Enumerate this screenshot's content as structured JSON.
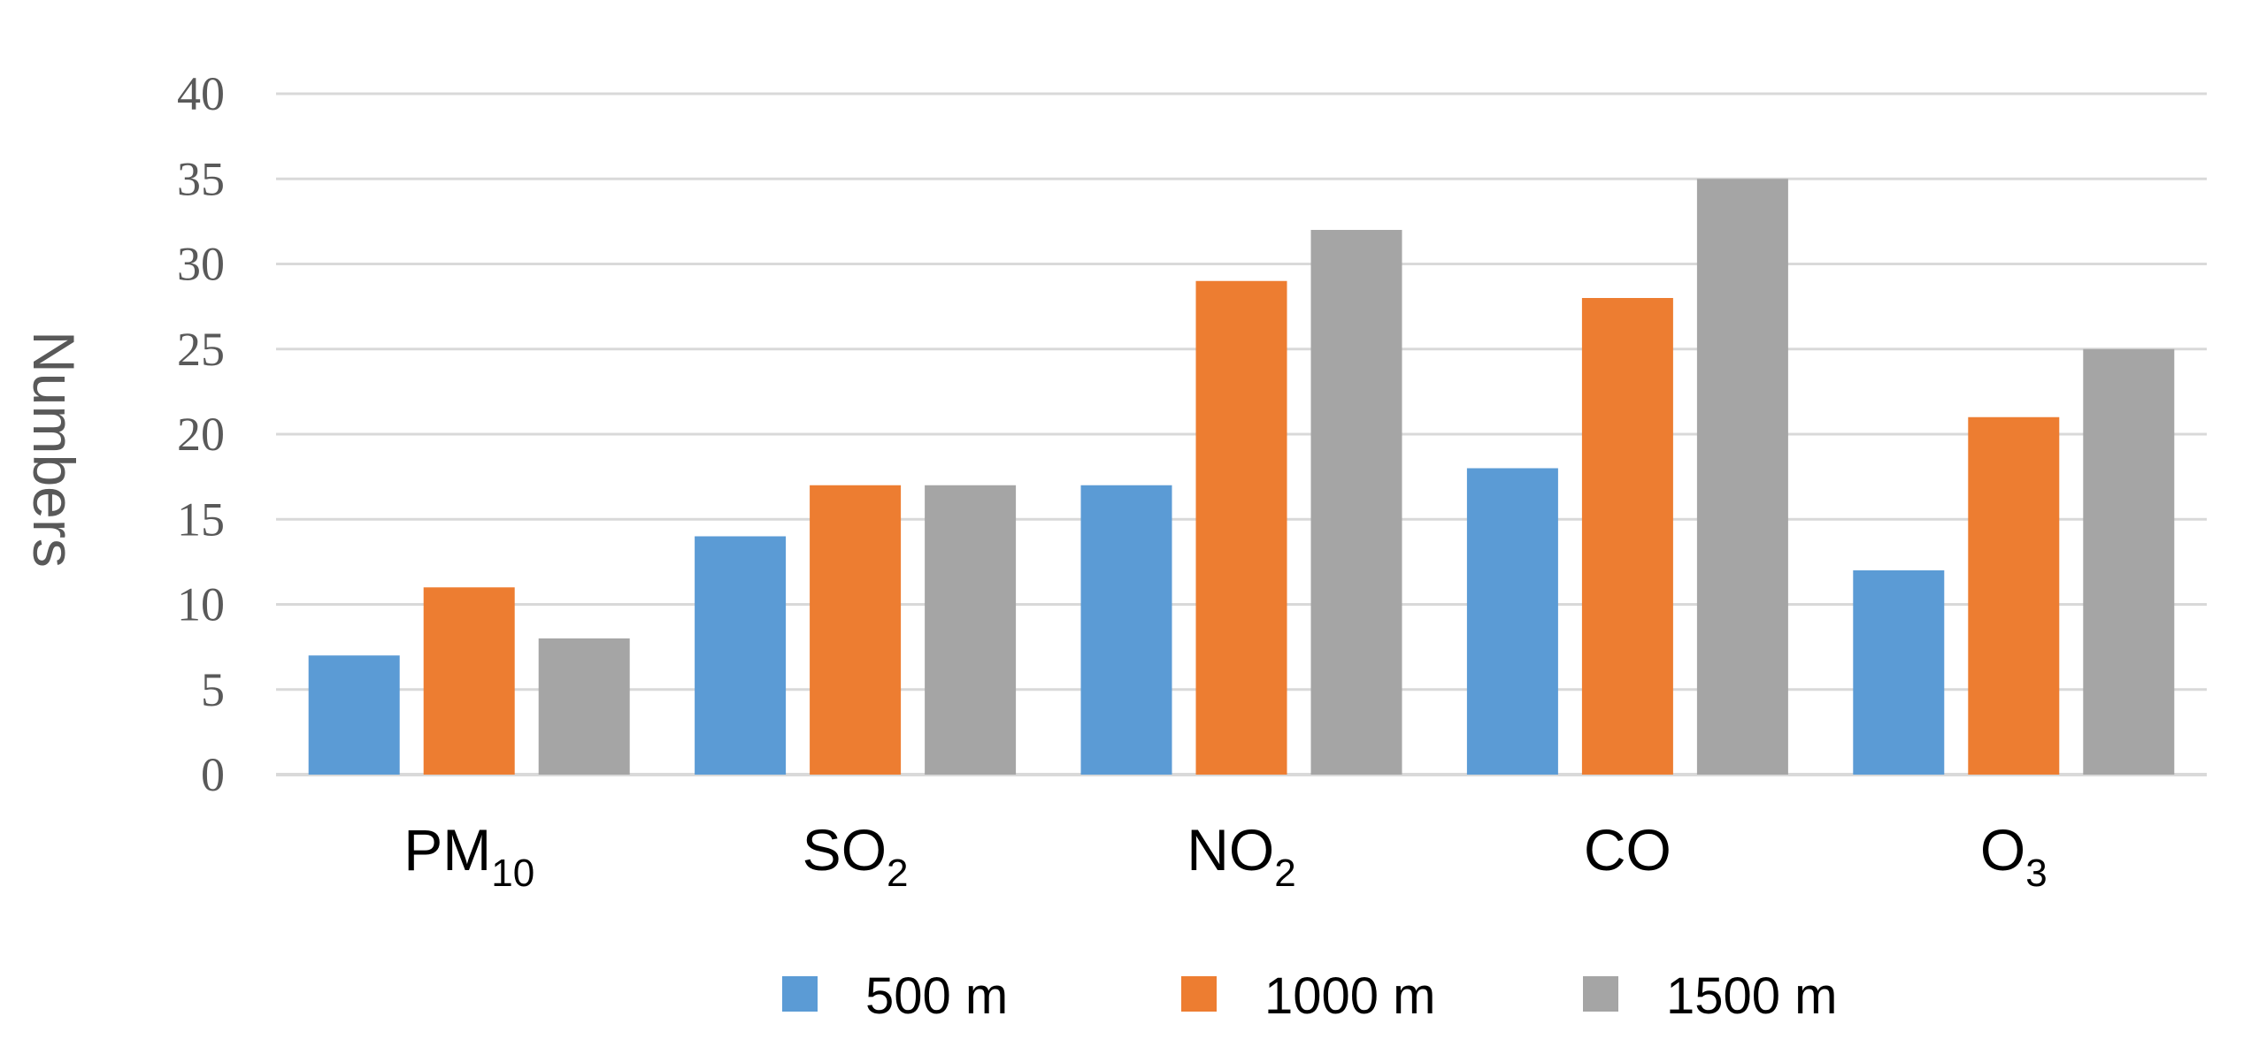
{
  "chart_data": {
    "type": "bar",
    "title": "",
    "xlabel": "",
    "ylabel": "Numbers",
    "ylim": [
      0,
      40
    ],
    "ytick_step": 5,
    "yticks": [
      "0",
      "5",
      "10",
      "15",
      "20",
      "25",
      "30",
      "35",
      "40"
    ],
    "grid": true,
    "legend_position": "bottom",
    "categories": [
      {
        "base": "PM",
        "sub": "10"
      },
      {
        "base": "SO",
        "sub": "2"
      },
      {
        "base": "NO",
        "sub": "2"
      },
      {
        "base": "CO",
        "sub": ""
      },
      {
        "base": "O",
        "sub": "3"
      }
    ],
    "series": [
      {
        "name": "500 m",
        "color": "#5B9BD5",
        "values": [
          7,
          14,
          17,
          18,
          12
        ]
      },
      {
        "name": "1000 m",
        "color": "#ED7D31",
        "values": [
          11,
          17,
          29,
          28,
          21
        ]
      },
      {
        "name": "1500 m",
        "color": "#A5A5A5",
        "values": [
          8,
          17,
          32,
          35,
          25
        ]
      }
    ],
    "colors": {
      "grid": "#D9D9D9",
      "axis_text": "#595959",
      "category_text": "#000000"
    }
  }
}
